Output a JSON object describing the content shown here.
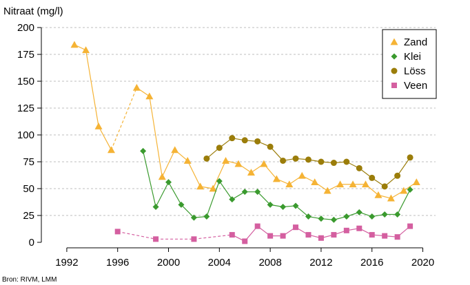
{
  "chart_data": {
    "type": "line",
    "title": "",
    "xlabel": "",
    "ylabel": "Nitraat (mg/l)",
    "source": "Bron: RIVM, LMM",
    "xlim": [
      1990,
      2021
    ],
    "ylim": [
      0,
      200
    ],
    "xticks": [
      1992,
      1996,
      2000,
      2004,
      2008,
      2012,
      2016,
      2020
    ],
    "yticks": [
      0,
      25,
      50,
      75,
      100,
      125,
      150,
      175,
      200
    ],
    "grid": "horizontal dashed",
    "legend_position": "top-right",
    "series": [
      {
        "name": "Zand",
        "color": "#f5b335",
        "marker": "triangle",
        "points": [
          [
            1992.6,
            184
          ],
          [
            1993.5,
            179
          ],
          [
            1994.5,
            108
          ],
          [
            1995.5,
            86
          ],
          [
            1997.5,
            144
          ],
          [
            1998.5,
            136
          ],
          [
            1999.5,
            61
          ],
          [
            2000.5,
            86
          ],
          [
            2001.5,
            76
          ],
          [
            2002.5,
            52
          ],
          [
            2003.5,
            50
          ],
          [
            2004.5,
            76
          ],
          [
            2005.5,
            73
          ],
          [
            2006.5,
            65
          ],
          [
            2007.5,
            73
          ],
          [
            2008.5,
            59
          ],
          [
            2009.5,
            54
          ],
          [
            2010.5,
            62
          ],
          [
            2011.5,
            56
          ],
          [
            2012.5,
            48
          ],
          [
            2013.5,
            54
          ],
          [
            2014.5,
            54
          ],
          [
            2015.5,
            54
          ],
          [
            2016.5,
            44
          ],
          [
            2017.5,
            41
          ],
          [
            2018.5,
            48
          ],
          [
            2019.5,
            56
          ]
        ],
        "dashed_segments": [
          [
            3,
            4
          ]
        ]
      },
      {
        "name": "Klei",
        "color": "#3a9a2e",
        "marker": "diamond",
        "points": [
          [
            1998,
            85
          ],
          [
            1999,
            33
          ],
          [
            2000,
            56
          ],
          [
            2001,
            35
          ],
          [
            2002,
            23
          ],
          [
            2003,
            24
          ],
          [
            2004,
            57
          ],
          [
            2005,
            40
          ],
          [
            2006,
            47
          ],
          [
            2007,
            47
          ],
          [
            2008,
            35
          ],
          [
            2009,
            33
          ],
          [
            2010,
            34
          ],
          [
            2011,
            24
          ],
          [
            2012,
            22
          ],
          [
            2013,
            21
          ],
          [
            2014,
            24
          ],
          [
            2015,
            28
          ],
          [
            2016,
            24
          ],
          [
            2017,
            26
          ],
          [
            2018,
            26
          ],
          [
            2019,
            49
          ]
        ],
        "dashed_segments": []
      },
      {
        "name": "Löss",
        "color": "#9b7d0a",
        "marker": "circle",
        "points": [
          [
            2003,
            78
          ],
          [
            2004,
            88
          ],
          [
            2005,
            97
          ],
          [
            2006,
            95
          ],
          [
            2007,
            94
          ],
          [
            2008,
            89
          ],
          [
            2009,
            76
          ],
          [
            2010,
            78
          ],
          [
            2011,
            77
          ],
          [
            2012,
            75
          ],
          [
            2013,
            74
          ],
          [
            2014,
            75
          ],
          [
            2015,
            69
          ],
          [
            2016,
            60
          ],
          [
            2017,
            52
          ],
          [
            2018,
            62
          ],
          [
            2019,
            79
          ]
        ],
        "dashed_segments": []
      },
      {
        "name": "Veen",
        "color": "#d45fa0",
        "marker": "square",
        "points": [
          [
            1996,
            10
          ],
          [
            1999,
            3
          ],
          [
            2002,
            3
          ],
          [
            2005,
            7
          ],
          [
            2006,
            1
          ],
          [
            2007,
            15
          ],
          [
            2008,
            6
          ],
          [
            2009,
            6
          ],
          [
            2010,
            14
          ],
          [
            2011,
            7
          ],
          [
            2012,
            4
          ],
          [
            2013,
            7
          ],
          [
            2014,
            11
          ],
          [
            2015,
            13
          ],
          [
            2016,
            7
          ],
          [
            2017,
            6
          ],
          [
            2018,
            5
          ],
          [
            2019,
            15
          ]
        ],
        "dashed_segments": [
          [
            0,
            1
          ],
          [
            1,
            2
          ],
          [
            2,
            3
          ]
        ]
      }
    ]
  }
}
